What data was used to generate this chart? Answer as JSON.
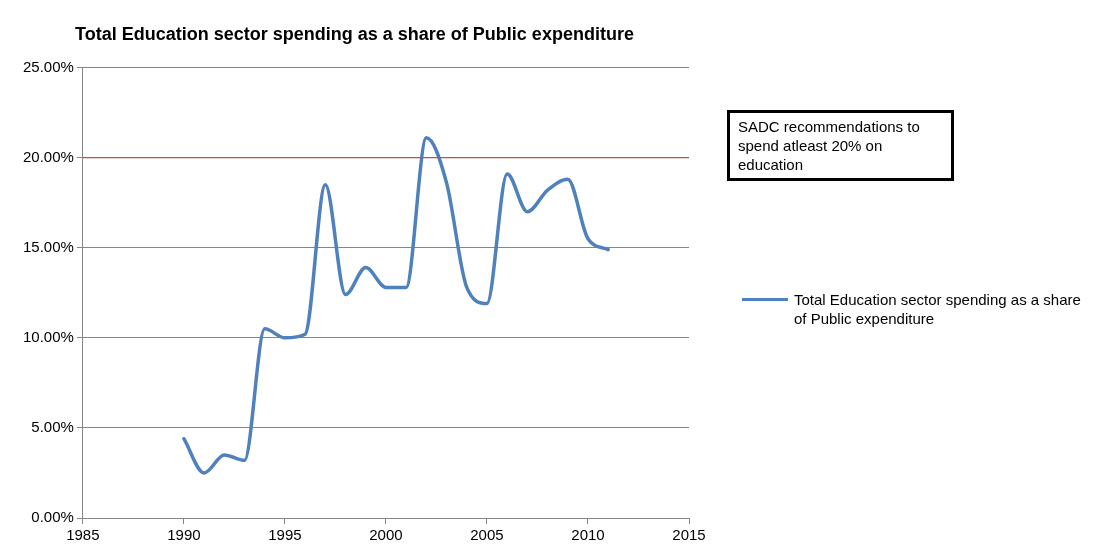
{
  "chart_data": {
    "type": "line",
    "title": "Total Education sector spending as a share of Public expenditure",
    "x": [
      1990,
      1991,
      1992,
      1993,
      1994,
      1995,
      1996,
      1997,
      1998,
      1999,
      2000,
      2001,
      2002,
      2003,
      2004,
      2005,
      2006,
      2007,
      2008,
      2009,
      2010,
      2011
    ],
    "series": [
      {
        "name": "Total Education  sector spending as a share of Public expenditure",
        "color": "#4f81bd",
        "values": [
          4.4,
          2.5,
          3.5,
          3.2,
          10.5,
          10.0,
          10.2,
          18.5,
          12.4,
          13.9,
          12.8,
          12.8,
          21.1,
          18.6,
          12.8,
          11.9,
          19.1,
          17.0,
          18.2,
          18.8,
          15.5,
          14.9
        ]
      }
    ],
    "xlim": [
      1985,
      2015
    ],
    "xticks": [
      1985,
      1990,
      1995,
      2000,
      2005,
      2010,
      2015
    ],
    "ylim": [
      0,
      25
    ],
    "yticks": [
      {
        "value": 0,
        "label": "0.00%"
      },
      {
        "value": 5,
        "label": "5.00%"
      },
      {
        "value": 10,
        "label": "10.00%"
      },
      {
        "value": 15,
        "label": "15.00%"
      },
      {
        "value": 20,
        "label": "20.00%"
      },
      {
        "value": 25,
        "label": "25.00%"
      }
    ],
    "ref_lines": [
      {
        "axis": "y",
        "value": 20,
        "color": "#c0504d"
      }
    ],
    "annotations": [
      "SADC recommendations to spend atleast  20% on education"
    ],
    "grid": "y",
    "legend": "right",
    "marker": "none",
    "line_style": "solid"
  }
}
